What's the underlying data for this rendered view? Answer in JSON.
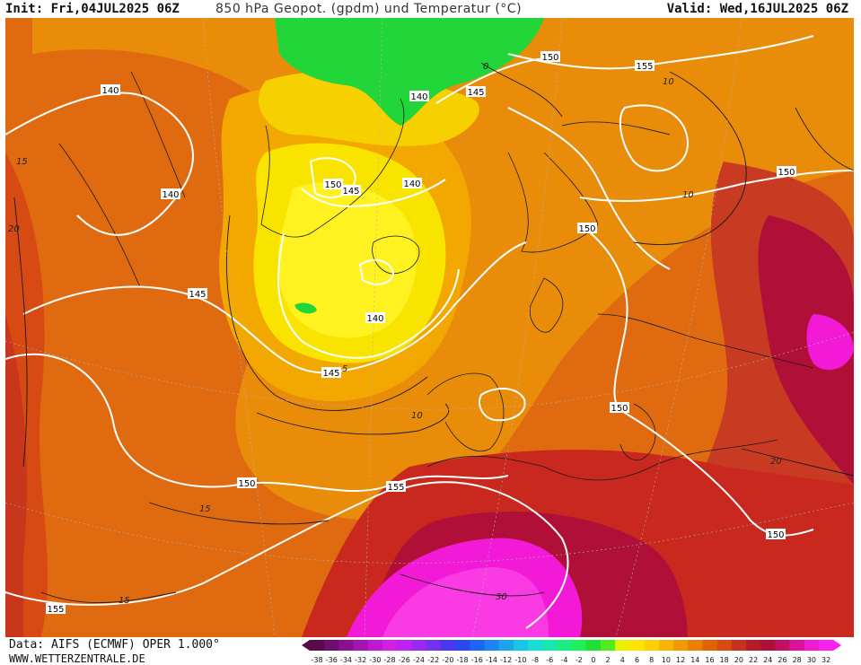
{
  "header": {
    "init": "Init: Fri,04JUL2025 06Z",
    "title": "850 hPa Geopot. (gpdm) und Temperatur (°C)",
    "valid": "Valid: Wed,16JUL2025 06Z"
  },
  "footer": {
    "data_source": "Data: AIFS (ECMWF) OPER 1.000°",
    "site": "WWW.WETTERZENTRALE.DE"
  },
  "colorbar": {
    "ticks": [
      "-38",
      "-36",
      "-34",
      "-32",
      "-30",
      "-28",
      "-26",
      "-24",
      "-22",
      "-20",
      "-18",
      "-16",
      "-14",
      "-12",
      "-10",
      "-8",
      "-6",
      "-4",
      "-2",
      "0",
      "2",
      "4",
      "6",
      "8",
      "10",
      "12",
      "14",
      "16",
      "18",
      "20",
      "22",
      "24",
      "26",
      "28",
      "30",
      "32"
    ],
    "colors": [
      "#5a0a4a",
      "#6e0d6e",
      "#8a108e",
      "#a414b0",
      "#c018d0",
      "#d31ee6",
      "#c020f0",
      "#9a28f2",
      "#7430f0",
      "#4a38f0",
      "#2a48f2",
      "#1c64f4",
      "#1a84f2",
      "#1aa4ee",
      "#18c4e8",
      "#18dcd6",
      "#18e8b0",
      "#18ee84",
      "#1ef05a",
      "#20e032",
      "#52ec1c",
      "#eaf000",
      "#ffe400",
      "#ffd000",
      "#f8b400",
      "#f29800",
      "#ec7e00",
      "#e26200",
      "#d84a10",
      "#c83020",
      "#b81a28",
      "#b01038",
      "#c40e64",
      "#dc129c",
      "#f01ad2",
      "#fa20ee"
    ]
  },
  "map": {
    "geopotential_labels": [
      {
        "text": "140"
      },
      {
        "text": "140"
      },
      {
        "text": "140"
      },
      {
        "text": "140"
      },
      {
        "text": "140"
      },
      {
        "text": "145"
      },
      {
        "text": "145"
      },
      {
        "text": "145"
      },
      {
        "text": "150"
      },
      {
        "text": "150"
      },
      {
        "text": "150"
      },
      {
        "text": "150"
      },
      {
        "text": "150"
      },
      {
        "text": "150"
      },
      {
        "text": "150"
      },
      {
        "text": "155"
      },
      {
        "text": "155"
      },
      {
        "text": "155"
      }
    ],
    "temperature_labels": [
      {
        "text": "0"
      },
      {
        "text": "5"
      },
      {
        "text": "10"
      },
      {
        "text": "10"
      },
      {
        "text": "10"
      },
      {
        "text": "15"
      },
      {
        "text": "15"
      },
      {
        "text": "15"
      },
      {
        "text": "20"
      },
      {
        "text": "20"
      },
      {
        "text": "30"
      }
    ],
    "colors": {
      "background": "#e06a10",
      "warm_orange": "#e98c0a",
      "light_orange": "#f2a800",
      "yellow": "#f9e400",
      "pale_yellow": "#fff220",
      "green": "#22d63a",
      "deep_red": "#c82828",
      "crimson": "#b01038",
      "magenta": "#f21ad6",
      "isohypse": "#ffffff",
      "isotherm": "#1a1a1a"
    }
  }
}
